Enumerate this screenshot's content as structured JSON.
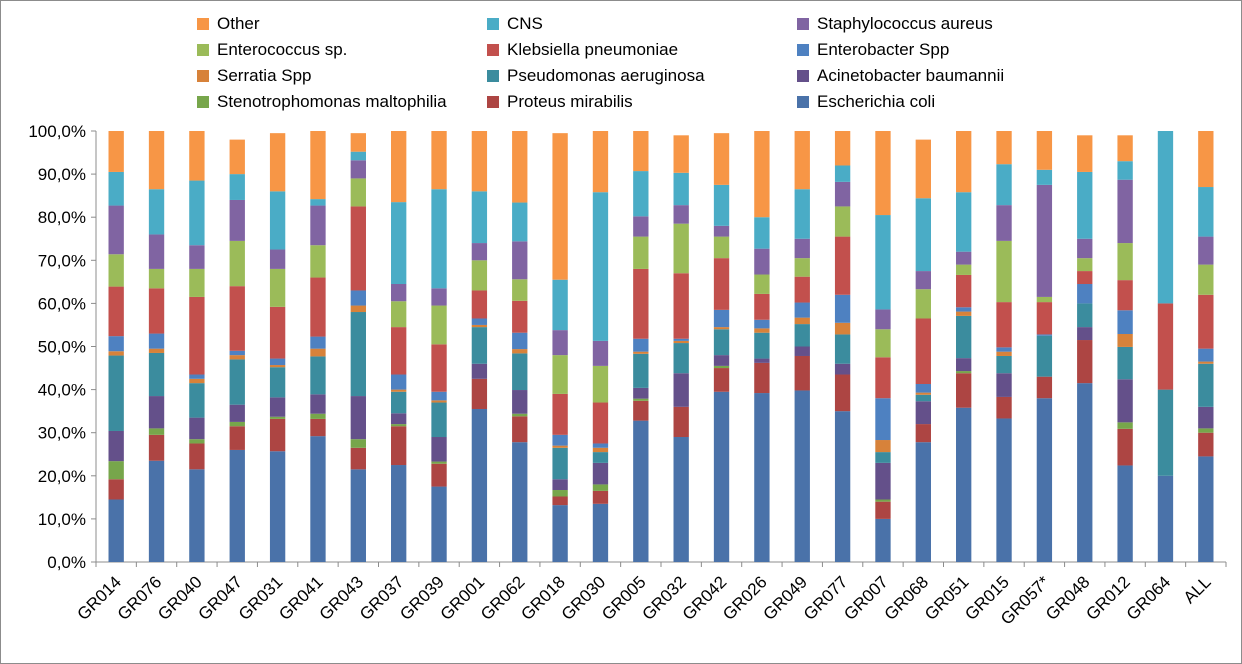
{
  "chart_data": {
    "type": "bar",
    "stacked": true,
    "normalized": true,
    "title": "",
    "xlabel": "",
    "ylabel": "",
    "ylim": [
      0,
      100
    ],
    "grid": false,
    "legend_position": "top",
    "y_ticks": [
      "0,0%",
      "10,0%",
      "20,0%",
      "30,0%",
      "40,0%",
      "50,0%",
      "60,0%",
      "70,0%",
      "80,0%",
      "90,0%",
      "100,0%"
    ],
    "categories": [
      "GR014",
      "GR076",
      "GR040",
      "GR047",
      "GR031",
      "GR041",
      "GR043",
      "GR037",
      "GR039",
      "GR001",
      "GR062",
      "GR018",
      "GR030",
      "GR005",
      "GR032",
      "GR042",
      "GR026",
      "GR049",
      "GR077",
      "GR007",
      "GR068",
      "GR051",
      "GR015",
      "GR057*",
      "GR048",
      "GR012",
      "GR064",
      "ALL"
    ],
    "legend_order": [
      "Other",
      "CNS",
      "Staphylococcus aureus",
      "Enterococcus sp.",
      "Klebsiella pneumoniae",
      "Enterobacter Spp",
      "Serratia Spp",
      "Pseudomonas aeruginosa",
      "Acinetobacter baumannii",
      "Stenotrophomonas maltophilia",
      "Proteus mirabilis",
      "Escherichia coli"
    ],
    "series": [
      {
        "name": "Escherichia coli",
        "color": "#4a72a9",
        "values": [
          14.5,
          23.5,
          21.5,
          26.0,
          25.7,
          29.2,
          21.5,
          22.5,
          17.5,
          35.5,
          27.8,
          13.2,
          13.5,
          32.8,
          29.0,
          39.5,
          39.2,
          39.8,
          35.0,
          10.0,
          27.8,
          35.8,
          33.3,
          38.0,
          41.5,
          22.4,
          20.0,
          24.5
        ]
      },
      {
        "name": "Proteus mirabilis",
        "color": "#ad4543",
        "values": [
          4.7,
          6.0,
          6.0,
          5.5,
          7.5,
          4.0,
          5.0,
          9.0,
          5.3,
          7.0,
          6.0,
          2.0,
          3.0,
          4.6,
          7.0,
          5.5,
          7.0,
          8.0,
          8.5,
          4.0,
          4.2,
          8.0,
          5.0,
          5.0,
          10.0,
          8.5,
          0.0,
          5.5
        ]
      },
      {
        "name": "Stenotrophomonas maltophilia",
        "color": "#77a64b",
        "values": [
          4.2,
          1.5,
          1.0,
          1.0,
          0.5,
          1.2,
          2.0,
          0.5,
          0.5,
          0.0,
          0.6,
          1.5,
          1.5,
          0.5,
          0.0,
          0.5,
          0.0,
          0.0,
          0.0,
          0.5,
          0.0,
          0.5,
          0.0,
          0.0,
          0.0,
          1.5,
          0.0,
          1.0
        ]
      },
      {
        "name": "Acinetobacter baumannii",
        "color": "#64508a",
        "values": [
          7.0,
          7.5,
          5.0,
          4.0,
          4.5,
          4.5,
          10.0,
          2.5,
          5.7,
          3.5,
          5.5,
          2.5,
          5.0,
          2.5,
          7.8,
          2.5,
          1.0,
          2.2,
          2.5,
          8.5,
          5.3,
          3.0,
          5.5,
          0.0,
          3.0,
          10.0,
          0.0,
          5.0
        ]
      },
      {
        "name": "Pseudomonas aeruginosa",
        "color": "#3b8c9e",
        "values": [
          17.5,
          10.0,
          8.0,
          10.5,
          7.0,
          8.8,
          19.5,
          5.0,
          8.0,
          8.5,
          8.5,
          7.3,
          2.5,
          7.9,
          7.0,
          6.0,
          6.0,
          5.2,
          6.8,
          2.5,
          1.5,
          9.8,
          4.0,
          9.5,
          5.5,
          7.5,
          20.0,
          10.0
        ]
      },
      {
        "name": "Serratia Spp",
        "color": "#d7823a",
        "values": [
          1.0,
          1.0,
          1.0,
          1.0,
          0.5,
          1.8,
          1.5,
          0.5,
          0.5,
          0.5,
          1.0,
          0.5,
          1.0,
          0.5,
          0.5,
          0.5,
          1.0,
          1.5,
          2.7,
          2.8,
          0.5,
          1.0,
          1.0,
          0.0,
          0.0,
          3.0,
          0.0,
          0.5
        ]
      },
      {
        "name": "Enterobacter Spp",
        "color": "#4e81c1",
        "values": [
          3.5,
          3.5,
          1.0,
          1.0,
          1.5,
          2.8,
          3.5,
          3.5,
          2.0,
          1.5,
          3.8,
          2.5,
          1.0,
          3.0,
          0.5,
          4.0,
          2.0,
          3.5,
          6.5,
          9.7,
          2.0,
          1.0,
          1.0,
          0.3,
          4.5,
          5.5,
          0.0,
          3.0
        ]
      },
      {
        "name": "Klebsiella pneumoniae",
        "color": "#c2504d",
        "values": [
          11.5,
          10.5,
          18.0,
          15.0,
          12.0,
          13.7,
          19.5,
          11.0,
          11.0,
          6.5,
          7.4,
          9.5,
          9.5,
          16.2,
          15.2,
          12.0,
          6.0,
          6.0,
          13.5,
          9.5,
          15.2,
          7.5,
          10.5,
          7.5,
          3.0,
          7.0,
          20.0,
          12.5
        ]
      },
      {
        "name": "Enterococcus sp.",
        "color": "#9bbb59",
        "values": [
          7.5,
          4.5,
          6.5,
          10.5,
          8.8,
          7.5,
          6.5,
          6.0,
          9.0,
          7.0,
          5.0,
          9.0,
          8.5,
          7.5,
          11.5,
          5.0,
          4.5,
          4.3,
          7.0,
          6.5,
          6.8,
          2.4,
          14.2,
          1.2,
          3.0,
          8.6,
          0.0,
          7.0
        ]
      },
      {
        "name": "Staphylococcus aureus",
        "color": "#8064a2",
        "values": [
          11.3,
          8.0,
          5.5,
          9.5,
          4.5,
          9.2,
          4.2,
          4.0,
          4.0,
          4.0,
          8.8,
          5.8,
          5.8,
          4.7,
          4.3,
          2.5,
          6.0,
          4.5,
          5.7,
          4.6,
          4.2,
          3.0,
          8.3,
          26.0,
          4.5,
          14.7,
          0.0,
          6.5
        ]
      },
      {
        "name": "CNS",
        "color": "#4aacc6",
        "values": [
          7.8,
          10.5,
          15.0,
          6.0,
          13.5,
          1.5,
          2.0,
          19.0,
          23.0,
          12.0,
          9.0,
          11.7,
          34.5,
          10.5,
          7.5,
          9.5,
          7.3,
          11.5,
          3.8,
          21.9,
          16.9,
          13.8,
          9.5,
          3.5,
          15.5,
          4.3,
          40.0,
          11.5
        ]
      },
      {
        "name": "Other",
        "color": "#f79646",
        "values": [
          9.5,
          13.5,
          11.5,
          8.0,
          13.5,
          15.8,
          4.3,
          16.5,
          13.5,
          14.0,
          16.6,
          34.0,
          14.2,
          9.3,
          8.7,
          12.0,
          20.0,
          13.5,
          8.0,
          19.5,
          13.6,
          14.2,
          7.7,
          9.0,
          8.5,
          6.0,
          0.0,
          13.0
        ]
      }
    ]
  }
}
